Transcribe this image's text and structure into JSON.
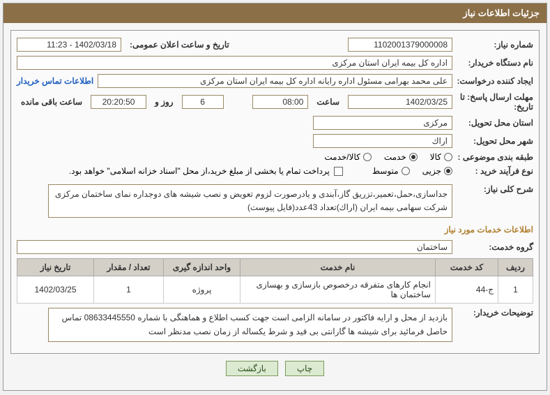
{
  "header": {
    "title": "جزئیات اطلاعات نیاز"
  },
  "need_number": {
    "label": "شماره نیاز:",
    "value": "1102001379000008"
  },
  "announce": {
    "label": "تاریخ و ساعت اعلان عمومی:",
    "value": "1402/03/18 - 11:23"
  },
  "buyer_org": {
    "label": "نام دستگاه خریدار:",
    "value": "اداره کل بیمه ایران استان مرکزی"
  },
  "requester": {
    "label": "ایجاد کننده درخواست:",
    "value": "علی محمد بهرامی مسئول اداره رایانه اداره کل بیمه ایران استان مرکزی",
    "link": "اطلاعات تماس خریدار"
  },
  "deadline": {
    "label1": "مهلت ارسال پاسخ: تا",
    "label2": "تاریخ:",
    "date": "1402/03/25",
    "time_label": "ساعت",
    "time": "08:00",
    "days": "6",
    "days_label": "روز و",
    "hours": "20:20:50",
    "remain": "ساعت باقی مانده"
  },
  "province": {
    "label": "استان محل تحویل:",
    "value": "مرکزی"
  },
  "city": {
    "label": "شهر محل تحویل:",
    "value": "اراك"
  },
  "category": {
    "label": "طبقه بندی موضوعی :",
    "opt1": "کالا",
    "opt2": "خدمت",
    "opt3": "کالا/خدمت",
    "selected": 2
  },
  "process": {
    "label": "نوع فرآیند خرید :",
    "opt1": "جزیی",
    "opt2": "متوسط",
    "selected": 1,
    "note": "پرداخت تمام یا بخشی از مبلغ خرید،از محل \"اسناد خزانه اسلامی\" خواهد بود."
  },
  "desc": {
    "label": "شرح کلی نیاز:",
    "value": "جداسازی،حمل،تعمیر،تزریق گاز،آبندی و یادرصورت لزوم تعویض و نصب شیشه های دوجداره نمای ساختمان مرکزی شرکت سهامی بیمه ایران (اراك)تعداد 43عدد(فایل پیوست)"
  },
  "section": {
    "title": "اطلاعات خدمات مورد نیاز"
  },
  "group": {
    "label": "گروه خدمت:",
    "value": "ساختمان"
  },
  "table": {
    "headers": {
      "row": "ردیف",
      "code": "کد خدمت",
      "name": "نام خدمت",
      "unit": "واحد اندازه گیری",
      "qty": "تعداد / مقدار",
      "date": "تاریخ نیاز"
    },
    "rows": [
      {
        "row": "1",
        "code": "ج-44",
        "name": "انجام کارهای متفرقه درخصوص بازسازی و بهسازی ساختمان ها",
        "unit": "پروژه",
        "qty": "1",
        "date": "1402/03/25"
      }
    ]
  },
  "buyer_notes": {
    "label": "توضیحات خریدار:",
    "value": "بازدید از محل و ارایه فاکتور در سامانه الزامی است جهت کسب اطلاع و هماهنگی با شماره 08633445550 تماس حاصل فرمائید برای شیشه ها گارانتی بی قید و شرط یکساله از زمان نصب مدنظر است"
  },
  "buttons": {
    "print": "چاپ",
    "back": "بازگشت"
  },
  "colors": {
    "header_bg": "#8b6f47",
    "accent": "#b08030",
    "btn_bg": "#dbead0"
  }
}
